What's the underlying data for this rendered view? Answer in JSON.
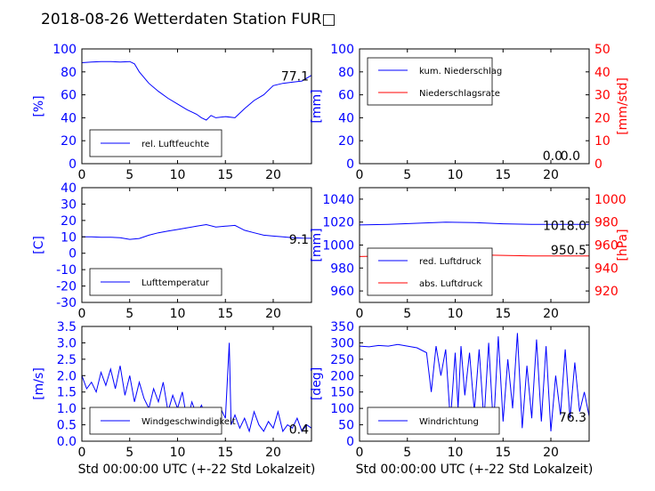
{
  "title": "2018-08-26 Wetterdaten Station FUR□",
  "xlabel_common": "Std 00:00:00 UTC (+-22 Std Lokalzeit)",
  "colors": {
    "blue": "#0000ff",
    "red": "#ff0000",
    "black": "#000000"
  },
  "chart_data": [
    {
      "type": "line",
      "id": "humidity",
      "ylabel": "[%]",
      "xlim": [
        0,
        24
      ],
      "ylim": [
        0,
        100
      ],
      "xticks": [
        0,
        5,
        10,
        15,
        20
      ],
      "yticks": [
        0,
        20,
        40,
        60,
        80,
        100
      ],
      "legend_position": "lower-left",
      "annotation": "77.1",
      "series": [
        {
          "name": "rel. Luftfeuchte",
          "color": "#0000ff",
          "x": [
            0,
            1,
            2,
            3,
            4,
            5,
            5.5,
            6,
            7,
            8,
            9,
            10,
            11,
            12,
            12.5,
            13,
            13.5,
            14,
            15,
            16,
            17,
            18,
            19,
            20,
            21,
            22,
            23,
            24
          ],
          "y": [
            88,
            88.5,
            89,
            89,
            88.5,
            89,
            87,
            80,
            70,
            63,
            57,
            52,
            47,
            43,
            40,
            38,
            42,
            40,
            41,
            40,
            48,
            55,
            60,
            68,
            70,
            71,
            72,
            77
          ]
        }
      ]
    },
    {
      "type": "line",
      "id": "precipitation",
      "ylabel": "[mm]",
      "y2label": "[mm/std]",
      "xlim": [
        0,
        24
      ],
      "ylim": [
        0,
        100
      ],
      "y2lim": [
        0,
        50
      ],
      "xticks": [
        0,
        5,
        10,
        15,
        20
      ],
      "yticks": [
        0,
        20,
        40,
        60,
        80,
        100
      ],
      "y2ticks": [
        0,
        10,
        20,
        30,
        40,
        50
      ],
      "legend_position": "top-left",
      "annotations": [
        "0.0",
        "0.0"
      ],
      "series": [
        {
          "name": "kum. Niederschlag",
          "color": "#0000ff",
          "axis": "left",
          "x": [
            0,
            24
          ],
          "y": [
            0,
            0
          ]
        },
        {
          "name": "Niederschlagsrate",
          "color": "#ff0000",
          "axis": "right",
          "x": [
            0,
            24
          ],
          "y": [
            0,
            0
          ]
        }
      ]
    },
    {
      "type": "line",
      "id": "temperature",
      "ylabel": "[C]",
      "xlim": [
        0,
        24
      ],
      "ylim": [
        -30,
        40
      ],
      "xticks": [
        0,
        5,
        10,
        15,
        20
      ],
      "yticks": [
        -30,
        -20,
        -10,
        0,
        10,
        20,
        30,
        40
      ],
      "legend_position": "lower-left",
      "annotation": "9.1",
      "series": [
        {
          "name": "Lufttemperatur",
          "color": "#0000ff",
          "x": [
            0,
            1,
            2,
            3,
            4,
            5,
            6,
            7,
            8,
            9,
            10,
            11,
            12,
            13,
            14,
            15,
            16,
            17,
            18,
            19,
            20,
            21,
            22,
            23,
            24
          ],
          "y": [
            10,
            10,
            9.8,
            9.8,
            9.5,
            8.5,
            9,
            11,
            12.5,
            13.5,
            14.5,
            15.5,
            16.5,
            17.5,
            16,
            16.5,
            17,
            14,
            12.5,
            11,
            10.5,
            10,
            9.5,
            9.2,
            9.1
          ]
        }
      ]
    },
    {
      "type": "line",
      "id": "pressure",
      "ylabel": "[mm]",
      "y2label": "[hPa]",
      "xlim": [
        0,
        24
      ],
      "ylim": [
        950,
        1050
      ],
      "y2lim": [
        910,
        1010
      ],
      "xticks": [
        0,
        5,
        10,
        15,
        20
      ],
      "yticks": [
        960,
        980,
        1000,
        1020,
        1040
      ],
      "y2ticks": [
        920,
        940,
        960,
        980,
        1000
      ],
      "legend_position": "lower-left",
      "annotations": [
        "1018.0",
        "950.5"
      ],
      "series": [
        {
          "name": "red. Luftdruck",
          "color": "#0000ff",
          "axis": "left",
          "x": [
            0,
            3,
            6,
            9,
            12,
            15,
            18,
            21,
            24
          ],
          "y": [
            1017.5,
            1018,
            1019,
            1020,
            1019.5,
            1018.5,
            1018,
            1018,
            1018
          ]
        },
        {
          "name": "abs. Luftdruck",
          "color": "#ff0000",
          "axis": "right",
          "x": [
            0,
            3,
            6,
            9,
            12,
            15,
            18,
            21,
            24
          ],
          "y": [
            950,
            950.5,
            951,
            952,
            951.5,
            951,
            950.5,
            950.5,
            950.5
          ]
        }
      ]
    },
    {
      "type": "line",
      "id": "wind-speed",
      "ylabel": "[m/s]",
      "xlabel": "Std 00:00:00 UTC (+-22 Std Lokalzeit)",
      "xlim": [
        0,
        24
      ],
      "ylim": [
        0,
        3.5
      ],
      "xticks": [
        0,
        5,
        10,
        15,
        20
      ],
      "yticks": [
        0.0,
        0.5,
        1.0,
        1.5,
        2.0,
        2.5,
        3.0,
        3.5
      ],
      "legend_position": "lower-left",
      "annotation": "0.4",
      "series": [
        {
          "name": "Windgeschwindigkeit",
          "color": "#0000ff",
          "x": [
            0,
            0.5,
            1,
            1.5,
            2,
            2.5,
            3,
            3.5,
            4,
            4.5,
            5,
            5.5,
            6,
            6.5,
            7,
            7.5,
            8,
            8.5,
            9,
            9.5,
            10,
            10.5,
            11,
            11.5,
            12,
            12.5,
            13,
            13.5,
            14,
            14.5,
            15,
            15.4,
            15.6,
            16,
            16.5,
            17,
            17.5,
            18,
            18.5,
            19,
            19.5,
            20,
            20.5,
            21,
            21.5,
            22,
            22.5,
            23,
            23.5,
            24
          ],
          "y": [
            2.0,
            1.6,
            1.8,
            1.5,
            2.1,
            1.7,
            2.2,
            1.6,
            2.3,
            1.4,
            2.0,
            1.2,
            1.8,
            1.3,
            1.0,
            1.6,
            1.2,
            1.8,
            0.9,
            1.4,
            1.0,
            1.5,
            0.6,
            1.2,
            0.8,
            1.1,
            0.7,
            0.9,
            0.6,
            1.0,
            0.7,
            3.0,
            0.5,
            0.8,
            0.4,
            0.7,
            0.3,
            0.9,
            0.5,
            0.3,
            0.6,
            0.4,
            0.9,
            0.3,
            0.5,
            0.4,
            0.7,
            0.3,
            0.5,
            0.4
          ]
        }
      ]
    },
    {
      "type": "line",
      "id": "wind-direction",
      "ylabel": "[deg]",
      "xlabel": "Std 00:00:00 UTC (+-22 Std Lokalzeit)",
      "xlim": [
        0,
        24
      ],
      "ylim": [
        0,
        350
      ],
      "xticks": [
        0,
        5,
        10,
        15,
        20
      ],
      "yticks": [
        0,
        50,
        100,
        150,
        200,
        250,
        300,
        350
      ],
      "legend_position": "lower-left",
      "annotation": "76.3",
      "series": [
        {
          "name": "Windrichtung",
          "color": "#0000ff",
          "x": [
            0,
            1,
            2,
            3,
            4,
            5,
            6,
            7,
            7.5,
            8,
            8.5,
            9,
            9.5,
            10,
            10.3,
            10.6,
            11,
            11.5,
            12,
            12.5,
            13,
            13.5,
            14,
            14.5,
            15,
            15.5,
            16,
            16.5,
            17,
            17.5,
            18,
            18.5,
            19,
            19.5,
            20,
            20.5,
            21,
            21.5,
            22,
            22.5,
            23,
            23.5,
            24
          ],
          "y": [
            290,
            288,
            292,
            290,
            295,
            290,
            285,
            270,
            150,
            290,
            200,
            280,
            60,
            270,
            100,
            290,
            140,
            270,
            90,
            280,
            60,
            300,
            40,
            320,
            60,
            250,
            100,
            330,
            40,
            230,
            70,
            310,
            60,
            290,
            30,
            200,
            80,
            280,
            70,
            240,
            90,
            150,
            76
          ]
        }
      ]
    }
  ]
}
